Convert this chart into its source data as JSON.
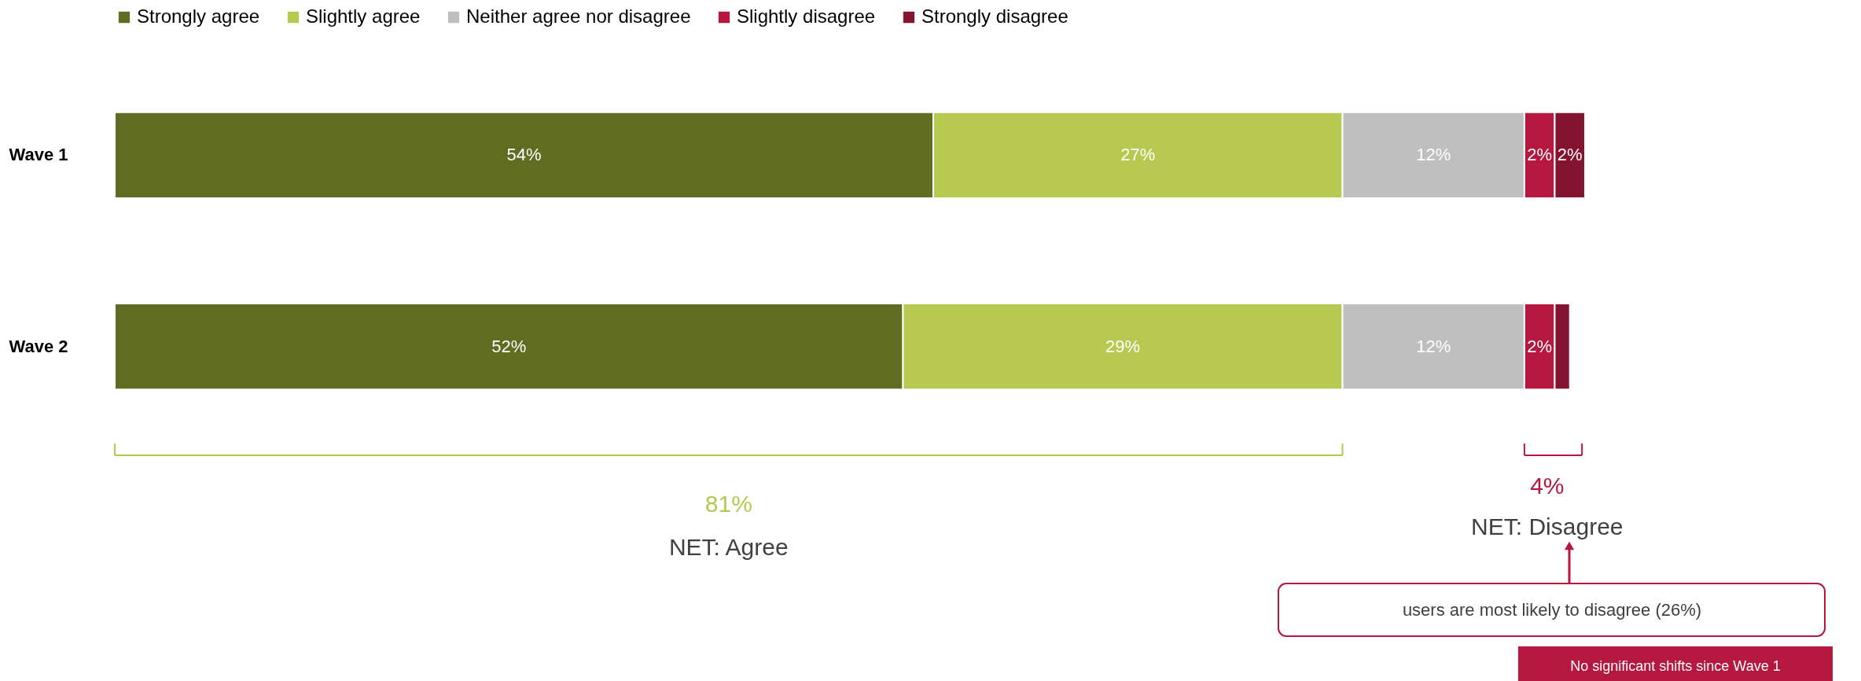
{
  "chart_data": {
    "type": "bar",
    "orientation": "horizontal",
    "stacked": true,
    "categories": [
      "Wave 1",
      "Wave 2"
    ],
    "series": [
      {
        "name": "Strongly agree",
        "color": "#606c22",
        "values": [
          54,
          52
        ],
        "value_labels": [
          "54%",
          "52%"
        ]
      },
      {
        "name": "Slightly agree",
        "color": "#b7c951",
        "values": [
          27,
          29
        ],
        "value_labels": [
          "27%",
          "29%"
        ]
      },
      {
        "name": "Neither agree nor disagree",
        "color": "#bfbfbf",
        "values": [
          12,
          12
        ],
        "value_labels": [
          "12%",
          "12%"
        ]
      },
      {
        "name": "Slightly disagree",
        "color": "#b5173f",
        "values": [
          2,
          2
        ],
        "value_labels": [
          "2%",
          "2%"
        ]
      },
      {
        "name": "Strongly disagree",
        "color": "#84132f",
        "values": [
          2,
          1
        ],
        "value_labels": [
          "2%",
          null
        ]
      }
    ],
    "tick_labels": "y",
    "legend": "top",
    "annotations": [
      "81%",
      "NET: Agree",
      "4%",
      "NET: Disagree",
      "users are most likely to disagree (26%)",
      "No significant shifts since Wave 1"
    ]
  }
}
